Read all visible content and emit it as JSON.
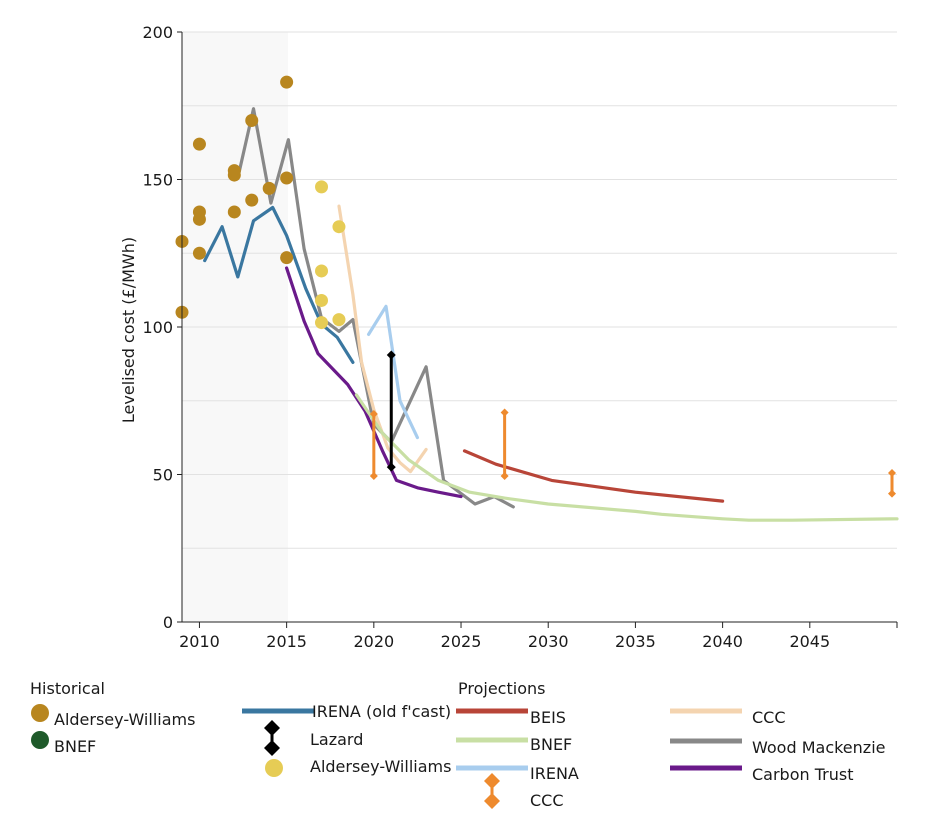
{
  "chart_data": {
    "type": "line",
    "xlabel": "",
    "ylabel": "Levelised cost (£/MWh)",
    "xlim": [
      2009,
      2050
    ],
    "ylim": [
      0,
      200
    ],
    "x_ticks": [
      "2010",
      "2015",
      "2020",
      "2025",
      "2030",
      "2035",
      "2040",
      "2045"
    ],
    "y_ticks": [
      "0",
      "50",
      "100",
      "150",
      "200"
    ],
    "grid": "horizontal",
    "legend": {
      "historical_heading": "Historical",
      "projections_heading": "Projections",
      "historical": [
        {
          "label": "Aldersey-Williams",
          "color": "#b8861f",
          "marker": "circle"
        },
        {
          "label": "BNEF",
          "color": "#1f5a2a",
          "marker": "circle"
        },
        {
          "label": "IRENA (old f'cast)",
          "color": "#3a77a0",
          "marker": "line"
        },
        {
          "label": "Lazard",
          "color": "#000000",
          "marker": "diamond-range"
        },
        {
          "label": "Aldersey-Williams",
          "color": "#e6cc55",
          "marker": "circle"
        }
      ],
      "projections": [
        {
          "label": "BEIS",
          "color": "#b84538",
          "marker": "line"
        },
        {
          "label": "BNEF",
          "color": "#c8dfa4",
          "marker": "line"
        },
        {
          "label": "IRENA",
          "color": "#a8cdee",
          "marker": "line"
        },
        {
          "label": "CCC",
          "color": "#ee8a2e",
          "marker": "diamond-range"
        },
        {
          "label": "CCC",
          "color": "#f4d4b0",
          "marker": "line"
        },
        {
          "label": "Wood Mackenzie",
          "color": "#888888",
          "marker": "line"
        },
        {
          "label": "Carbon Trust",
          "color": "#6a1a8a",
          "marker": "line"
        }
      ]
    },
    "series": [
      {
        "name": "Aldersey-Williams",
        "kind": "scatter",
        "color": "#b8861f",
        "points": [
          [
            2009,
            129
          ],
          [
            2009,
            105
          ],
          [
            2010,
            162
          ],
          [
            2010,
            139
          ],
          [
            2010,
            136.5
          ],
          [
            2010,
            125
          ],
          [
            2012,
            153
          ],
          [
            2012,
            151.5
          ],
          [
            2012,
            139
          ],
          [
            2013,
            170
          ],
          [
            2013,
            143
          ],
          [
            2014,
            147
          ],
          [
            2015,
            183
          ],
          [
            2015,
            150.5
          ],
          [
            2015,
            123.5
          ]
        ]
      },
      {
        "name": "Aldersey-Williams",
        "kind": "scatter",
        "color": "#e6cc55",
        "points": [
          [
            2017,
            147.5
          ],
          [
            2018,
            134
          ],
          [
            2017,
            119
          ],
          [
            2017,
            109
          ],
          [
            2017,
            101.5
          ],
          [
            2018,
            102.5
          ]
        ]
      },
      {
        "name": "IRENA (old f'cast)",
        "kind": "line",
        "color": "#3a77a0",
        "points": [
          [
            2010.3,
            122.5
          ],
          [
            2011.3,
            134
          ],
          [
            2012.2,
            117
          ],
          [
            2013.1,
            136
          ],
          [
            2014.2,
            140.5
          ],
          [
            2015,
            131
          ],
          [
            2016.1,
            113
          ],
          [
            2017,
            101
          ],
          [
            2017.9,
            96.5
          ],
          [
            2018.8,
            88
          ]
        ]
      },
      {
        "name": "Wood Mackenzie",
        "kind": "line",
        "color": "#888888",
        "points": [
          [
            2012.2,
            150.5
          ],
          [
            2013.1,
            174
          ],
          [
            2014.1,
            142
          ],
          [
            2015.1,
            163.5
          ],
          [
            2016,
            126.5
          ],
          [
            2017,
            103
          ],
          [
            2018,
            98.5
          ],
          [
            2018.8,
            102.5
          ],
          [
            2020,
            67
          ],
          [
            2021,
            61
          ],
          [
            2023,
            86.5
          ],
          [
            2024,
            48
          ],
          [
            2025.8,
            40
          ],
          [
            2026.9,
            42.5
          ],
          [
            2028,
            39
          ]
        ]
      },
      {
        "name": "Carbon Trust",
        "kind": "line",
        "color": "#6a1a8a",
        "points": [
          [
            2015,
            120
          ],
          [
            2016,
            102
          ],
          [
            2016.8,
            91
          ],
          [
            2018.5,
            80.5
          ],
          [
            2019.5,
            71.5
          ],
          [
            2020.5,
            58
          ],
          [
            2021.3,
            48
          ],
          [
            2022.5,
            45.5
          ],
          [
            2023.7,
            44
          ],
          [
            2025,
            42.5
          ]
        ]
      },
      {
        "name": "CCC",
        "kind": "line",
        "color": "#f4d4b0",
        "points": [
          [
            2018,
            141
          ],
          [
            2018.8,
            111
          ],
          [
            2019.3,
            88
          ],
          [
            2020,
            72
          ],
          [
            2020.8,
            59
          ],
          [
            2021.5,
            54
          ],
          [
            2022.1,
            51
          ],
          [
            2023,
            58.5
          ]
        ]
      },
      {
        "name": "IRENA",
        "kind": "line",
        "color": "#a8cdee",
        "points": [
          [
            2019.7,
            97.5
          ],
          [
            2020.7,
            107
          ],
          [
            2021.5,
            75
          ],
          [
            2022.5,
            62.5
          ]
        ]
      },
      {
        "name": "BEIS",
        "kind": "line",
        "color": "#b84538",
        "points": [
          [
            2025.2,
            58
          ],
          [
            2027,
            53.5
          ],
          [
            2030.2,
            48
          ],
          [
            2035,
            44
          ],
          [
            2040,
            41
          ]
        ]
      },
      {
        "name": "BNEF",
        "kind": "line",
        "color": "#c8dfa4",
        "points": [
          [
            2019,
            77
          ],
          [
            2020.5,
            64
          ],
          [
            2022,
            55
          ],
          [
            2023.7,
            48
          ],
          [
            2025.5,
            44
          ],
          [
            2027.5,
            42
          ],
          [
            2030,
            40
          ],
          [
            2035,
            37.5
          ],
          [
            2036.5,
            36.5
          ],
          [
            2040,
            35
          ],
          [
            2041.5,
            34.5
          ],
          [
            2044,
            34.5
          ],
          [
            2050,
            35
          ]
        ]
      },
      {
        "name": "Lazard",
        "kind": "range",
        "color": "#000000",
        "ranges": [
          [
            2021,
            52.5,
            90.5
          ]
        ]
      },
      {
        "name": "CCC",
        "kind": "range",
        "color": "#ee8a2e",
        "ranges": [
          [
            2020,
            49.5,
            70.5
          ],
          [
            2027.5,
            49.5,
            71
          ],
          [
            2050,
            43.5,
            50.5
          ]
        ]
      }
    ]
  }
}
